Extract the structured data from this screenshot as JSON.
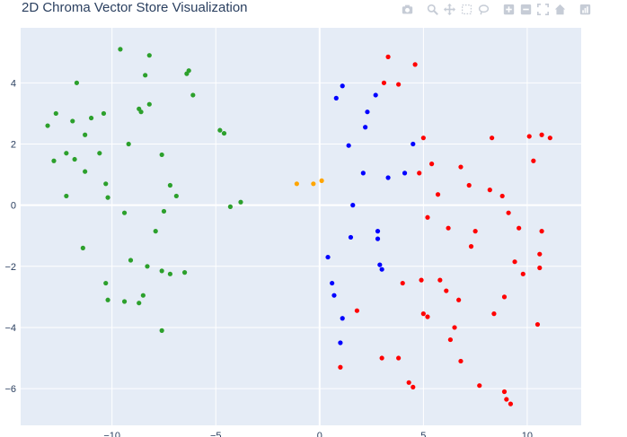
{
  "title": "2D Chroma Vector Store Visualization",
  "modebar": {
    "icons": [
      "camera-icon",
      "zoom-icon",
      "pan-icon",
      "box-select-icon",
      "lasso-select-icon",
      "zoom-in-icon",
      "zoom-out-icon",
      "autoscale-icon",
      "reset-axes-icon",
      "plotly-logo-icon"
    ]
  },
  "colors": {
    "plot_bg": "#e5ecf6",
    "grid": "#ffffff",
    "text": "#2a3f5f",
    "modebar_icon": "#c6ccd6"
  },
  "chart_data": {
    "type": "scatter",
    "title": "2D Chroma Vector Store Visualization",
    "xlabel": "",
    "ylabel": "",
    "xlim": [
      -14.4,
      12.6
    ],
    "ylim": [
      -7.2,
      5.8
    ],
    "xticks": [
      -10,
      -5,
      0,
      5,
      10
    ],
    "yticks": [
      -6,
      -4,
      -2,
      0,
      2,
      4
    ],
    "grid": true,
    "legend": "none",
    "series": [
      {
        "color": "#2ca02c",
        "points": [
          [
            -9.6,
            5.1
          ],
          [
            -8.2,
            4.9
          ],
          [
            -6.3,
            4.4
          ],
          [
            -6.4,
            4.3
          ],
          [
            -8.4,
            4.25
          ],
          [
            -11.7,
            4
          ],
          [
            -6.1,
            3.6
          ],
          [
            -8.2,
            3.3
          ],
          [
            -8.7,
            3.15
          ],
          [
            -8.6,
            3.05
          ],
          [
            -12.7,
            3
          ],
          [
            -10.4,
            3
          ],
          [
            -11,
            2.85
          ],
          [
            -11.9,
            2.75
          ],
          [
            -13.1,
            2.6
          ],
          [
            -4.8,
            2.45
          ],
          [
            -4.6,
            2.35
          ],
          [
            -11.3,
            2.3
          ],
          [
            -9.2,
            2
          ],
          [
            -12.2,
            1.7
          ],
          [
            -10.6,
            1.7
          ],
          [
            -7.6,
            1.65
          ],
          [
            -11.8,
            1.5
          ],
          [
            -12.8,
            1.45
          ],
          [
            -11.3,
            1.1
          ],
          [
            -10.3,
            0.7
          ],
          [
            -7.2,
            0.65
          ],
          [
            -6.9,
            0.3
          ],
          [
            -10.2,
            0.25
          ],
          [
            -12.2,
            0.3
          ],
          [
            -3.8,
            0.1
          ],
          [
            -4.3,
            -0.05
          ],
          [
            -7.5,
            -0.2
          ],
          [
            -9.4,
            -0.25
          ],
          [
            -7.9,
            -0.85
          ],
          [
            -11.4,
            -1.4
          ],
          [
            -9.1,
            -1.8
          ],
          [
            -8.3,
            -2
          ],
          [
            -7.6,
            -2.15
          ],
          [
            -7.2,
            -2.25
          ],
          [
            -6.5,
            -2.2
          ],
          [
            -10.3,
            -2.55
          ],
          [
            -8.5,
            -2.95
          ],
          [
            -10.2,
            -3.1
          ],
          [
            -9.4,
            -3.15
          ],
          [
            -8.7,
            -3.2
          ],
          [
            -7.6,
            -4.1
          ]
        ]
      },
      {
        "color": "#ffa500",
        "points": [
          [
            -1.1,
            0.7
          ],
          [
            -0.3,
            0.7
          ],
          [
            0.1,
            0.8
          ]
        ]
      },
      {
        "color": "#0000ff",
        "points": [
          [
            1.1,
            3.9
          ],
          [
            0.8,
            3.5
          ],
          [
            2.7,
            3.6
          ],
          [
            2.3,
            3.05
          ],
          [
            2.2,
            2.55
          ],
          [
            4.5,
            2
          ],
          [
            1.4,
            1.95
          ],
          [
            2.1,
            1.05
          ],
          [
            4.1,
            1.05
          ],
          [
            3.3,
            0.9
          ],
          [
            1.6,
            0
          ],
          [
            2.8,
            -0.85
          ],
          [
            2.8,
            -1.1
          ],
          [
            1.5,
            -1.05
          ],
          [
            0.4,
            -1.7
          ],
          [
            2.9,
            -1.95
          ],
          [
            3,
            -2.1
          ],
          [
            0.6,
            -2.55
          ],
          [
            0.7,
            -2.95
          ],
          [
            1.1,
            -3.7
          ],
          [
            1,
            -4.5
          ]
        ]
      },
      {
        "color": "#ff0000",
        "points": [
          [
            3.3,
            4.85
          ],
          [
            4.6,
            4.6
          ],
          [
            3.1,
            4
          ],
          [
            3.8,
            3.95
          ],
          [
            5,
            2.2
          ],
          [
            8.3,
            2.2
          ],
          [
            10.1,
            2.25
          ],
          [
            10.7,
            2.3
          ],
          [
            11.1,
            2.2
          ],
          [
            10.3,
            1.45
          ],
          [
            5.4,
            1.35
          ],
          [
            6.8,
            1.25
          ],
          [
            4.8,
            1.05
          ],
          [
            7.2,
            0.65
          ],
          [
            8.2,
            0.5
          ],
          [
            5.7,
            0.35
          ],
          [
            8.8,
            0.3
          ],
          [
            9.1,
            -0.25
          ],
          [
            5.2,
            -0.4
          ],
          [
            9.6,
            -0.75
          ],
          [
            6.2,
            -0.75
          ],
          [
            7.5,
            -0.85
          ],
          [
            10.7,
            -0.85
          ],
          [
            7.3,
            -1.35
          ],
          [
            10.6,
            -1.6
          ],
          [
            9.4,
            -1.85
          ],
          [
            10.6,
            -2.05
          ],
          [
            9.8,
            -2.25
          ],
          [
            4,
            -2.55
          ],
          [
            4.9,
            -2.45
          ],
          [
            5.8,
            -2.45
          ],
          [
            6.1,
            -2.8
          ],
          [
            8.9,
            -3
          ],
          [
            6.7,
            -3.1
          ],
          [
            1.8,
            -3.45
          ],
          [
            5,
            -3.55
          ],
          [
            5.2,
            -3.65
          ],
          [
            8.4,
            -3.55
          ],
          [
            10.5,
            -3.9
          ],
          [
            6.5,
            -4
          ],
          [
            6.3,
            -4.4
          ],
          [
            1,
            -5.3
          ],
          [
            3,
            -5
          ],
          [
            3.8,
            -5
          ],
          [
            6.8,
            -5.1
          ],
          [
            4.3,
            -5.8
          ],
          [
            4.5,
            -5.95
          ],
          [
            7.7,
            -5.9
          ],
          [
            8.9,
            -6.1
          ],
          [
            9,
            -6.35
          ],
          [
            9.2,
            -6.5
          ]
        ]
      }
    ]
  }
}
